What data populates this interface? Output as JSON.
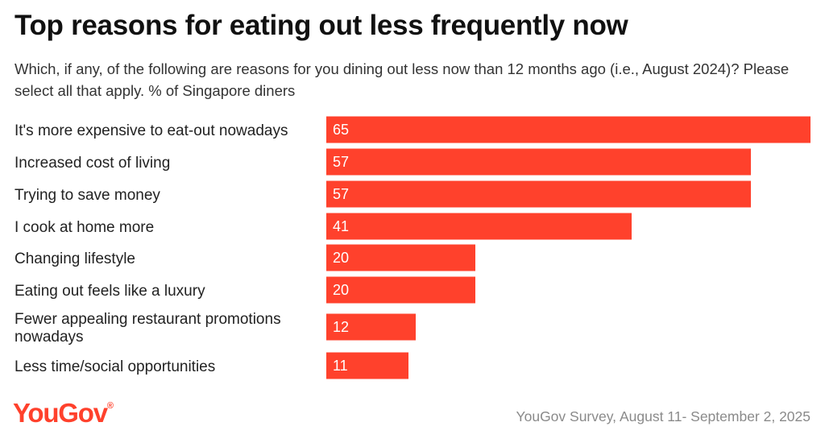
{
  "header": {
    "title": "Top reasons for eating out less frequently now",
    "subtitle": "Which, if any, of the following are reasons for you dining out less now than 12 months ago (i.e., August 2024)? Please select all that apply. % of Singapore diners"
  },
  "chart_data": {
    "type": "bar",
    "orientation": "horizontal",
    "title": "Top reasons for eating out less frequently now",
    "xlabel": "",
    "ylabel": "",
    "unit": "% of Singapore diners",
    "xlim": [
      0,
      65
    ],
    "grid": false,
    "color": "#ff412c",
    "categories": [
      [
        "It's more expensive to eat-out nowadays"
      ],
      [
        "Increased cost of living"
      ],
      [
        "Trying to save money"
      ],
      [
        "I cook at home more"
      ],
      [
        "Changing lifestyle"
      ],
      [
        "Eating out feels like a luxury"
      ],
      [
        "Fewer appealing restaurant promotions",
        "nowadays"
      ],
      [
        "Less time/social opportunities"
      ]
    ],
    "values": [
      65,
      57,
      57,
      41,
      20,
      20,
      12,
      11
    ]
  },
  "footer": {
    "brand": "YouGov",
    "brand_mark": "®",
    "source": "YouGov Survey, August 11- September 2, 2025"
  },
  "colors": {
    "bar": "#ff412c",
    "brand": "#ff412c",
    "source_text": "#8a8a8a"
  }
}
